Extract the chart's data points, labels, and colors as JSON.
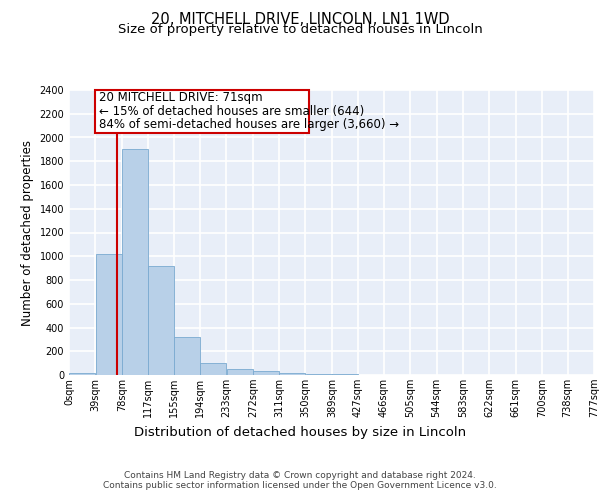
{
  "title_line1": "20, MITCHELL DRIVE, LINCOLN, LN1 1WD",
  "title_line2": "Size of property relative to detached houses in Lincoln",
  "xlabel": "Distribution of detached houses by size in Lincoln",
  "ylabel": "Number of detached properties",
  "bar_color": "#b8d0e8",
  "bar_edge_color": "#7aaad0",
  "background_color": "#e8eef8",
  "grid_color": "#ffffff",
  "vline_color": "#cc0000",
  "bins": [
    0,
    39,
    78,
    117,
    155,
    194,
    233,
    272,
    311,
    350,
    389,
    427,
    466,
    505,
    544,
    583,
    622,
    661,
    700,
    738,
    777
  ],
  "bin_labels": [
    "0sqm",
    "39sqm",
    "78sqm",
    "117sqm",
    "155sqm",
    "194sqm",
    "233sqm",
    "272sqm",
    "311sqm",
    "350sqm",
    "389sqm",
    "427sqm",
    "466sqm",
    "505sqm",
    "544sqm",
    "583sqm",
    "622sqm",
    "661sqm",
    "700sqm",
    "738sqm",
    "777sqm"
  ],
  "heights": [
    20,
    1020,
    1900,
    920,
    320,
    105,
    50,
    30,
    20,
    5,
    5,
    3,
    2,
    2,
    2,
    2,
    2,
    2,
    2,
    2
  ],
  "property_size": 71,
  "annotation_line1": "20 MITCHELL DRIVE: 71sqm",
  "annotation_line2": "← 15% of detached houses are smaller (644)",
  "annotation_line3": "84% of semi-detached houses are larger (3,660) →",
  "ylim": [
    0,
    2400
  ],
  "yticks": [
    0,
    200,
    400,
    600,
    800,
    1000,
    1200,
    1400,
    1600,
    1800,
    2000,
    2200,
    2400
  ],
  "footer_line1": "Contains HM Land Registry data © Crown copyright and database right 2024.",
  "footer_line2": "Contains public sector information licensed under the Open Government Licence v3.0.",
  "title_fontsize": 10.5,
  "subtitle_fontsize": 9.5,
  "ylabel_fontsize": 8.5,
  "xlabel_fontsize": 9.5,
  "tick_fontsize": 7,
  "annotation_fontsize": 8.5,
  "footer_fontsize": 6.5
}
